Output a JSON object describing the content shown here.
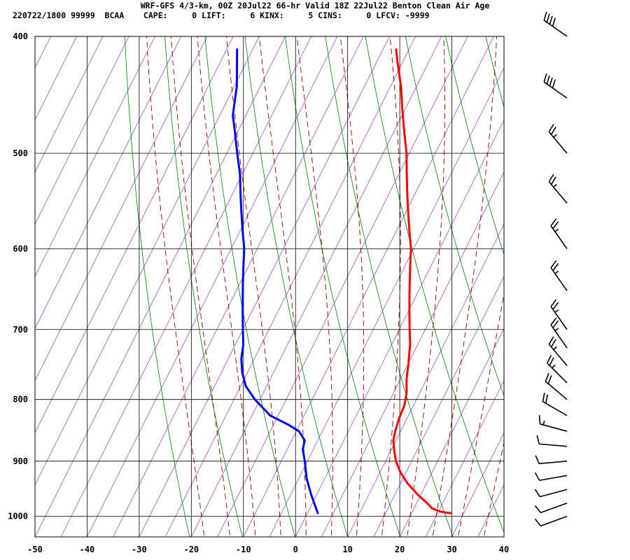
{
  "header": {
    "line1": "WRF-GFS 4/3-km, 00Z 20Jul22 66-hr Valid 18Z 22Jul22 Benton Clean Air Age",
    "line2": "220722/1800 99999  BCAA    CAPE:     0 LIFT:     6 KINX:     5 CINS:     0 LFCV: -9999"
  },
  "chart_data": {
    "type": "line",
    "subtype": "skew-T log-P sounding",
    "title": "WRF-GFS 4/3-km, 00Z 20Jul22 66-hr Valid 18Z 22Jul22 Benton Clean Air Age",
    "xlabel": "",
    "ylabel": "",
    "xlim": [
      -50,
      40
    ],
    "ylim": [
      1040,
      400
    ],
    "y_scale": "log",
    "x_ticks": [
      -50,
      -40,
      -30,
      -20,
      -10,
      0,
      10,
      20,
      30,
      40
    ],
    "y_ticks": [
      400,
      500,
      600,
      700,
      800,
      900,
      1000
    ],
    "grid": true,
    "series": [
      {
        "name": "",
        "color": "#ff0000",
        "pressure": [
          994,
          992,
          990,
          985,
          975,
          960,
          940,
          920,
          900,
          880,
          865,
          850,
          830,
          810,
          790,
          770,
          750,
          720,
          700,
          680,
          660,
          640,
          620,
          600,
          580,
          560,
          540,
          520,
          500,
          480,
          460,
          440,
          420,
          410
        ],
        "values": [
          27.5,
          26.0,
          25.0,
          23.5,
          22.0,
          19.5,
          16.5,
          14.0,
          12.0,
          10.5,
          9.5,
          9.0,
          8.5,
          8.3,
          7.5,
          6.2,
          5.2,
          3.5,
          2.0,
          0.5,
          -1.0,
          -2.5,
          -4.0,
          -5.5,
          -7.5,
          -9.5,
          -11.5,
          -13.5,
          -15.5,
          -18.0,
          -20.5,
          -23.0,
          -26.0,
          -27.5
        ]
      },
      {
        "name": "",
        "color": "#0000ff",
        "pressure": [
          994,
          960,
          930,
          900,
          880,
          865,
          850,
          840,
          825,
          800,
          780,
          760,
          740,
          720,
          700,
          680,
          660,
          640,
          620,
          600,
          580,
          560,
          540,
          520,
          500,
          480,
          465,
          440,
          410
        ],
        "values": [
          2.0,
          -1.0,
          -3.5,
          -5.5,
          -7.0,
          -7.5,
          -9.5,
          -12.0,
          -16.5,
          -21.0,
          -24.0,
          -26.0,
          -27.5,
          -28.5,
          -30.0,
          -31.5,
          -33.0,
          -34.5,
          -36.0,
          -37.5,
          -39.5,
          -41.5,
          -43.5,
          -45.5,
          -48.0,
          -50.5,
          -52.5,
          -54.5,
          -58.0
        ]
      }
    ],
    "wind_barbs": [
      {
        "pressure": 1000,
        "speed_kt": 10,
        "dir": 250
      },
      {
        "pressure": 975,
        "speed_kt": 10,
        "dir": 250
      },
      {
        "pressure": 950,
        "speed_kt": 10,
        "dir": 255
      },
      {
        "pressure": 925,
        "speed_kt": 10,
        "dir": 260
      },
      {
        "pressure": 900,
        "speed_kt": 10,
        "dir": 265
      },
      {
        "pressure": 875,
        "speed_kt": 10,
        "dir": 275
      },
      {
        "pressure": 850,
        "speed_kt": 15,
        "dir": 285
      },
      {
        "pressure": 825,
        "speed_kt": 20,
        "dir": 300
      },
      {
        "pressure": 800,
        "speed_kt": 20,
        "dir": 310
      },
      {
        "pressure": 775,
        "speed_kt": 25,
        "dir": 315
      },
      {
        "pressure": 750,
        "speed_kt": 25,
        "dir": 320
      },
      {
        "pressure": 725,
        "speed_kt": 25,
        "dir": 325
      },
      {
        "pressure": 700,
        "speed_kt": 25,
        "dir": 325
      },
      {
        "pressure": 650,
        "speed_kt": 25,
        "dir": 325
      },
      {
        "pressure": 600,
        "speed_kt": 25,
        "dir": 325
      },
      {
        "pressure": 550,
        "speed_kt": 25,
        "dir": 320
      },
      {
        "pressure": 500,
        "speed_kt": 25,
        "dir": 320
      },
      {
        "pressure": 450,
        "speed_kt": 40,
        "dir": 305
      },
      {
        "pressure": 400,
        "speed_kt": 40,
        "dir": 305
      }
    ],
    "colors": {
      "isotherm": "#9a4fd1",
      "dry_adiabat": "#008000",
      "moist_adiabat": "#8b0000",
      "grid": "#000000"
    }
  }
}
